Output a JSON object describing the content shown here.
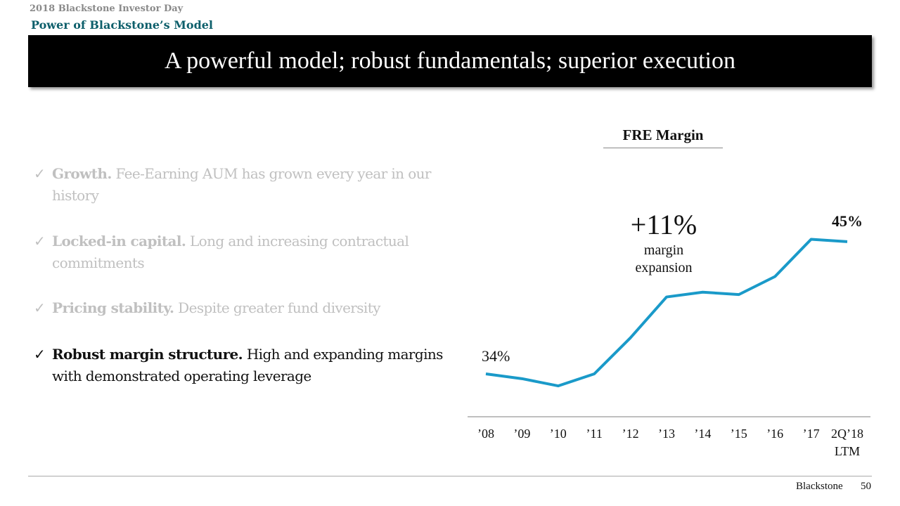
{
  "header": {
    "kicker": "2018 Blackstone Investor Day",
    "section": "Power of Blackstone’s Model",
    "title": "A powerful model; robust fundamentals; superior execution"
  },
  "bullets": [
    {
      "check": "✓",
      "bold": "Growth.",
      "text": " Fee-Earning AUM has grown every year in our history",
      "active": false
    },
    {
      "check": "✓",
      "bold": "Locked-in capital.",
      "text": " Long and increasing contractual commitments",
      "active": false
    },
    {
      "check": "✓",
      "bold": "Pricing stability.",
      "text": " Despite greater fund diversity",
      "active": false
    },
    {
      "check": "✓",
      "bold": "Robust margin structure.",
      "text": " High and expanding margins with demonstrated operating leverage",
      "active": true
    }
  ],
  "chart_data": {
    "type": "line",
    "title": "FRE Margin",
    "categories": [
      "’08",
      "’09",
      "’10",
      "’11",
      "’12",
      "’13",
      "’14",
      "’15",
      "’16",
      "’17",
      "2Q’18 LTM"
    ],
    "category_lines": [
      [
        "’08"
      ],
      [
        "’09"
      ],
      [
        "’10"
      ],
      [
        "’11"
      ],
      [
        "’12"
      ],
      [
        "’13"
      ],
      [
        "’14"
      ],
      [
        "’15"
      ],
      [
        "’16"
      ],
      [
        "’17"
      ],
      [
        "2Q’18",
        "LTM"
      ]
    ],
    "values": [
      34.0,
      33.6,
      33.0,
      34.0,
      37.0,
      40.4,
      40.8,
      40.6,
      42.1,
      45.2,
      45.0
    ],
    "unit": "%",
    "line_color": "#1a9ac9",
    "data_labels": {
      "first": "34%",
      "last": "45%"
    },
    "annotation": {
      "headline": "+11%",
      "line1": "margin",
      "line2": "expansion"
    },
    "grid": false,
    "y_axis_visible": false
  },
  "footer": {
    "brand": "Blackstone",
    "page": "50"
  }
}
